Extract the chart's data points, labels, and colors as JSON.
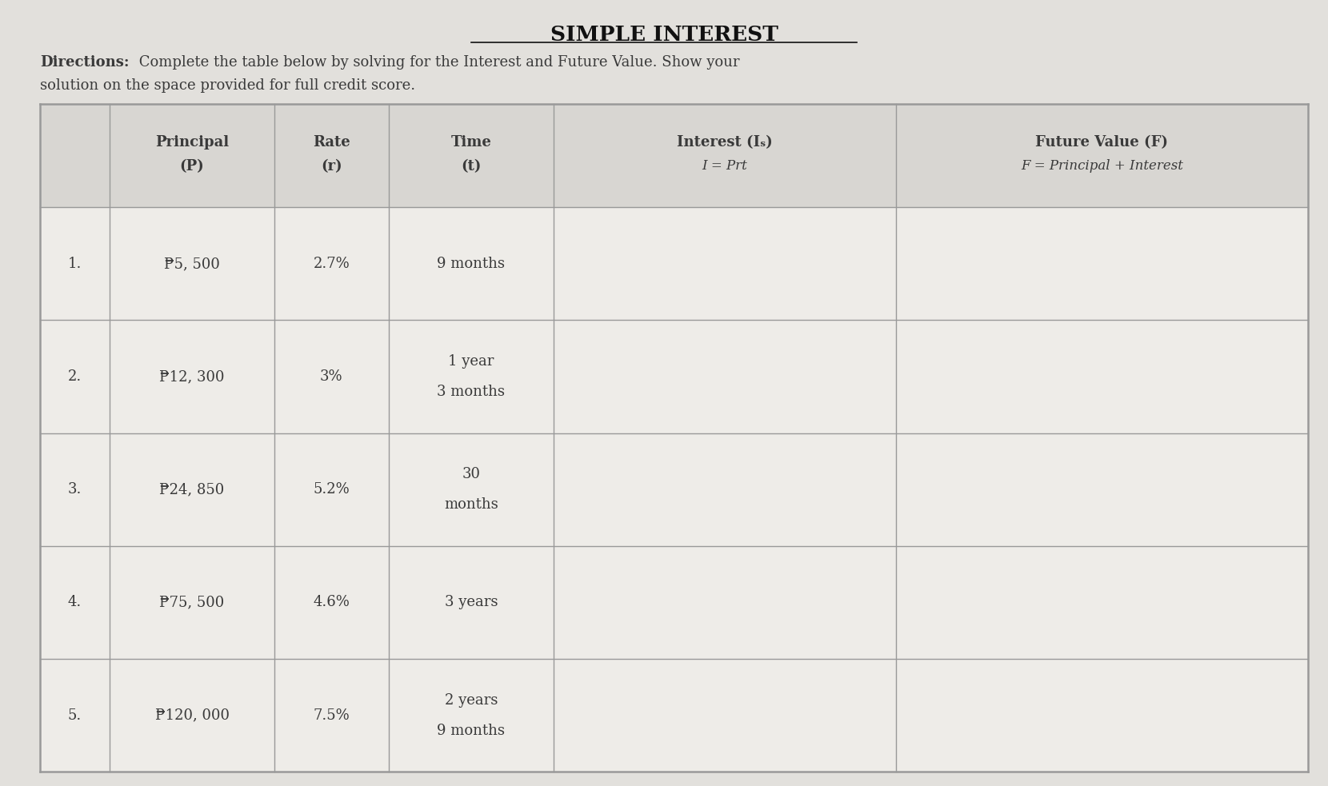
{
  "title": "SIMPLE INTEREST",
  "directions_bold": "Directions:",
  "directions_normal": " Complete the table below by solving for the Interest and Future Value. Show your",
  "directions_line2": "solution on the space provided for full credit score.",
  "col_headers_line1": [
    "",
    "Principal",
    "Rate",
    "Time",
    "Interest (Iₛ)",
    "Future Value (F)"
  ],
  "col_headers_line2": [
    "",
    "(P)",
    "(r)",
    "(t)",
    "I = Prt",
    "F = Principal + Interest"
  ],
  "rows": [
    [
      "1.",
      "₱5, 500",
      "2.7%",
      "9 months",
      "",
      ""
    ],
    [
      "2.",
      "₱12, 300",
      "3%",
      "1 year\n3 months",
      "",
      ""
    ],
    [
      "3.",
      "₱24, 850",
      "5.2%",
      "30\nmonths",
      "",
      ""
    ],
    [
      "4.",
      "₱75, 500",
      "4.6%",
      "3 years",
      "",
      ""
    ],
    [
      "5.",
      "₱120, 000",
      "7.5%",
      "2 years\n9 months",
      "",
      ""
    ]
  ],
  "bg_color": "#e2e0dc",
  "table_bg": "#eeece8",
  "header_bg": "#d8d6d2",
  "line_color": "#999999",
  "text_color": "#3a3a3a",
  "title_color": "#111111"
}
